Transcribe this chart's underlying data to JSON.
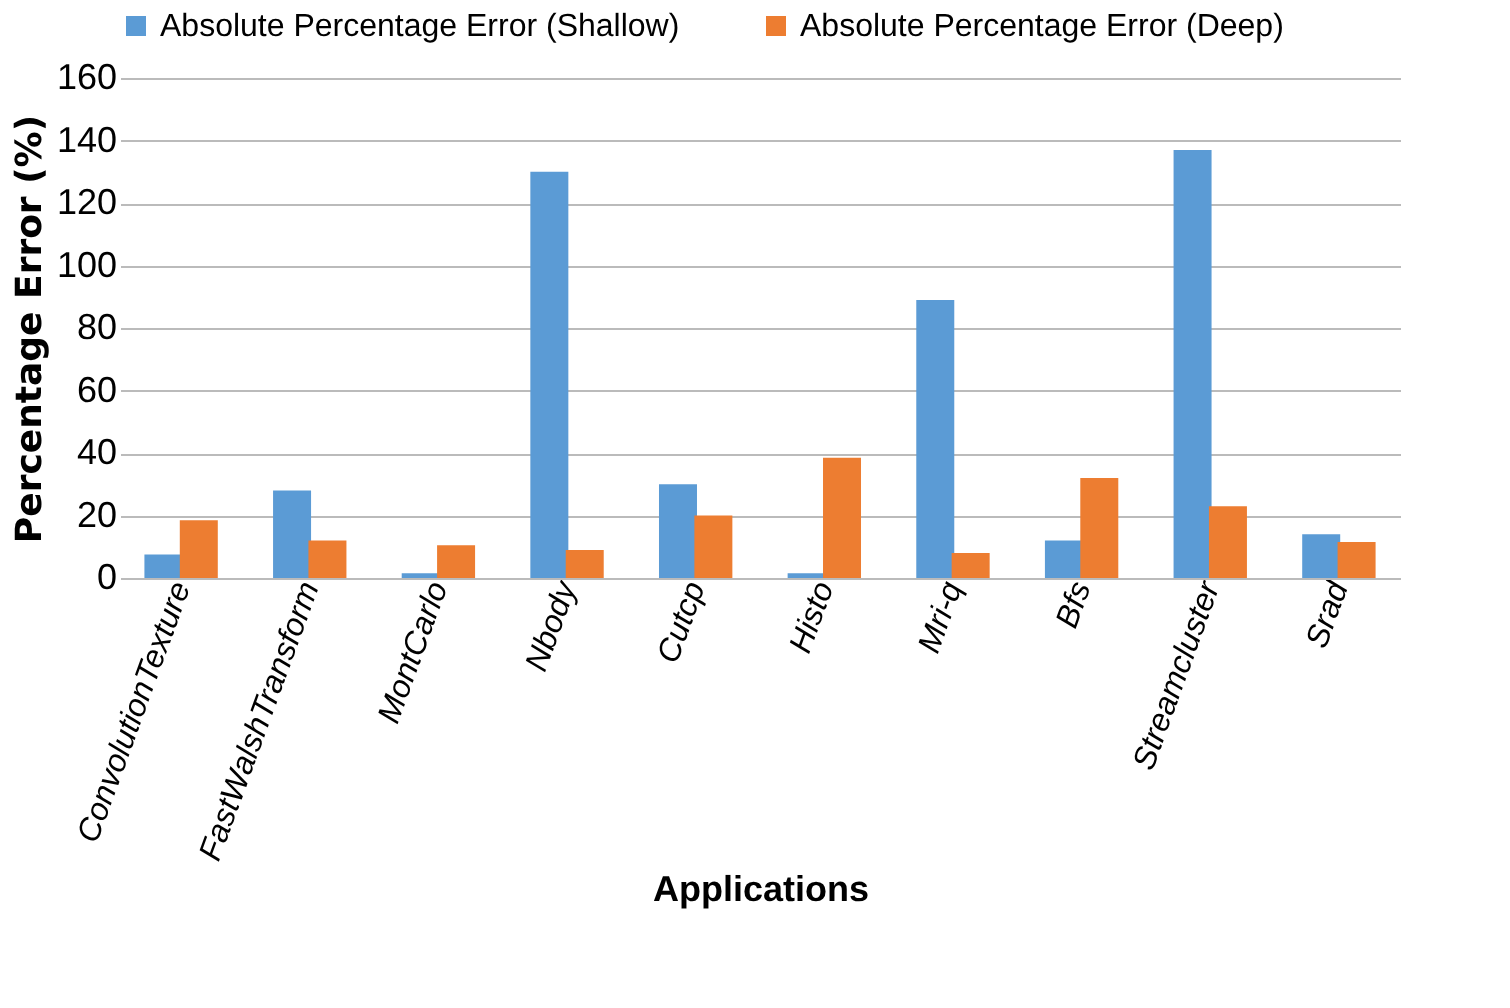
{
  "chart_data": {
    "type": "bar",
    "xlabel": "Applications",
    "ylabel": "Percentage Error (%)",
    "categories": [
      "ConvolutionTexture",
      "FastWalshTransform",
      "MontCarlo",
      "Nbody",
      "Cutcp",
      "Histo",
      "Mri-q",
      "Bfs",
      "Streamcluster",
      "Srad"
    ],
    "series": [
      {
        "name": "Absolute Percentage Error (Shallow)",
        "color": "#5b9bd5",
        "values": [
          7.5,
          28,
          1.5,
          130,
          30,
          1.5,
          89,
          12,
          137,
          14
        ]
      },
      {
        "name": "Absolute Percentage Error (Deep)",
        "color": "#ed7d31",
        "values": [
          18.5,
          12,
          10.5,
          9,
          20,
          38.5,
          8,
          32,
          23,
          11.5
        ]
      }
    ],
    "ylim": [
      0,
      160
    ],
    "yticks": [
      0,
      20,
      40,
      60,
      80,
      100,
      120,
      140,
      160
    ],
    "grid": "y",
    "legend": "top"
  }
}
